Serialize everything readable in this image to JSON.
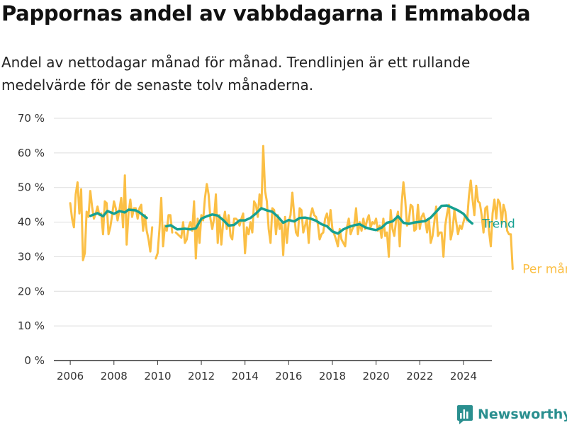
{
  "title": "Pappornas andel av vabbdagarna i Emmaboda",
  "subtitle": "Andel av nettodagar månad för månad. Trendlinjen är ett rullande medelvärde för de senaste tolv månaderna.",
  "brand": {
    "name": "Newsworthy",
    "icon": "newsworthy-logo-icon"
  },
  "colors": {
    "monthly": "#fbbf45",
    "trend": "#16a091",
    "grid": "#dddddd",
    "axis": "#333333"
  },
  "chart_data": {
    "type": "line",
    "ylim": [
      0,
      70
    ],
    "yticks": [
      0,
      10,
      20,
      30,
      40,
      50,
      60,
      70
    ],
    "ytick_labels": [
      "0 %",
      "10 %",
      "20 %",
      "30 %",
      "40 %",
      "50 %",
      "60 %",
      "70 %"
    ],
    "xlim": [
      2005.25,
      2025.3
    ],
    "xticks": [
      2006,
      2008,
      2010,
      2012,
      2014,
      2016,
      2018,
      2020,
      2022,
      2024
    ],
    "xtick_labels": [
      "2006",
      "2008",
      "2010",
      "2012",
      "2014",
      "2016",
      "2018",
      "2020",
      "2022",
      "2024"
    ],
    "grid": true,
    "series": [
      {
        "name": "Per månad",
        "color": "#fbbf45",
        "x_start": 2006.0,
        "step": 0.0833333,
        "values": [
          45.5,
          41,
          38.5,
          48,
          51.5,
          42.5,
          49.5,
          29,
          31,
          43,
          41.5,
          49,
          44.5,
          41,
          42.5,
          44.5,
          42,
          42.5,
          36.5,
          46,
          45.5,
          36.5,
          38.5,
          42,
          46,
          44,
          40.5,
          43.5,
          47,
          38.5,
          53.5,
          33.5,
          42.5,
          46.5,
          41.5,
          44,
          44,
          41,
          44,
          45,
          37.5,
          42,
          37.5,
          35,
          31.5,
          38.5,
          null,
          29.5,
          31,
          38,
          47,
          33,
          39,
          37.5,
          42,
          42,
          37,
          null,
          37,
          36.5,
          36,
          35.5,
          40,
          34,
          35,
          38.5,
          40,
          37.5,
          46,
          29.5,
          41,
          34,
          42,
          40.5,
          47,
          51,
          48,
          41,
          38,
          41,
          48,
          34,
          42,
          33.5,
          40,
          43,
          38,
          42,
          36,
          35,
          41,
          41,
          40.5,
          39,
          41,
          42.5,
          31,
          38.5,
          36.5,
          40,
          37,
          46,
          45,
          41.5,
          48,
          44,
          62,
          49,
          46,
          38,
          34,
          44,
          43.5,
          36.5,
          42,
          38,
          40,
          30.5,
          41.5,
          34,
          40,
          42,
          48.5,
          42,
          37,
          36,
          44,
          43.5,
          37,
          39,
          41,
          34,
          42,
          44,
          42,
          41.5,
          39.5,
          35,
          36.5,
          37,
          41,
          42.5,
          39,
          43.5,
          38,
          36.5,
          35,
          33,
          38,
          35,
          34,
          33,
          38.5,
          41,
          36.5,
          38,
          39,
          44,
          36.5,
          40,
          37.5,
          41,
          38,
          40.5,
          42,
          38.5,
          40,
          39.5,
          41,
          37.5,
          39,
          35.5,
          41,
          36,
          37,
          30,
          43.5,
          38,
          36,
          40.5,
          43,
          33,
          45,
          51.5,
          46.5,
          39,
          40.5,
          45,
          44.5,
          37.5,
          38,
          45,
          38,
          41.5,
          42.5,
          40.5,
          37,
          41,
          34,
          36,
          40,
          44.5,
          36,
          37,
          37,
          30,
          39,
          42.5,
          45,
          35,
          37.5,
          43.5,
          40,
          36.5,
          39,
          38,
          40,
          42,
          40.5,
          47.5,
          52,
          46.5,
          42,
          50.5,
          46,
          45.5,
          42,
          37,
          44,
          44.5,
          37.5,
          33,
          42.5,
          46.5,
          41,
          46.5,
          45.5,
          39.5,
          45,
          43,
          37.5,
          36.5,
          36.5,
          26.5
        ]
      },
      {
        "name": "Trend",
        "color": "#16a091",
        "x_start": 2006.92,
        "points": [
          [
            2006.92,
            41.8
          ],
          [
            2007.25,
            42.6
          ],
          [
            2007.5,
            41.7
          ],
          [
            2007.7,
            43.2
          ],
          [
            2008.0,
            42.4
          ],
          [
            2008.25,
            43.2
          ],
          [
            2008.5,
            42.8
          ],
          [
            2008.67,
            43.6
          ],
          [
            2009.0,
            43.4
          ],
          [
            2009.17,
            42.8
          ],
          [
            2009.5,
            41.2
          ],
          null,
          [
            2010.4,
            38.8
          ],
          [
            2010.6,
            39.1
          ],
          [
            2010.75,
            38.5
          ],
          [
            2010.9,
            37.9
          ],
          [
            2011.25,
            38.1
          ],
          [
            2011.5,
            37.9
          ],
          [
            2011.75,
            38.2
          ],
          [
            2012.0,
            41.0
          ],
          [
            2012.25,
            41.7
          ],
          [
            2012.5,
            42.2
          ],
          [
            2012.75,
            41.9
          ],
          [
            2013.0,
            40.6
          ],
          [
            2013.25,
            39.0
          ],
          [
            2013.5,
            39.2
          ],
          [
            2013.75,
            40.5
          ],
          [
            2014.0,
            40.5
          ],
          [
            2014.25,
            41.2
          ],
          [
            2014.5,
            42.5
          ],
          [
            2014.75,
            44.0
          ],
          [
            2015.0,
            43.4
          ],
          [
            2015.25,
            43.0
          ],
          [
            2015.5,
            41.6
          ],
          [
            2015.75,
            39.8
          ],
          [
            2016.0,
            40.6
          ],
          [
            2016.25,
            40.2
          ],
          [
            2016.5,
            41.2
          ],
          [
            2016.75,
            41.3
          ],
          [
            2017.0,
            41.0
          ],
          [
            2017.25,
            40.4
          ],
          [
            2017.5,
            39.4
          ],
          [
            2017.75,
            38.8
          ],
          [
            2018.0,
            37.3
          ],
          [
            2018.25,
            36.7
          ],
          [
            2018.5,
            37.9
          ],
          [
            2018.75,
            38.6
          ],
          [
            2019.0,
            39.1
          ],
          [
            2019.25,
            39.4
          ],
          [
            2019.5,
            38.5
          ],
          [
            2019.75,
            38.0
          ],
          [
            2020.0,
            37.7
          ],
          [
            2020.25,
            38.4
          ],
          [
            2020.5,
            39.8
          ],
          [
            2020.75,
            40.2
          ],
          [
            2021.0,
            41.7
          ],
          [
            2021.25,
            39.8
          ],
          [
            2021.5,
            39.5
          ],
          [
            2021.75,
            39.9
          ],
          [
            2022.0,
            40.1
          ],
          [
            2022.25,
            40.3
          ],
          [
            2022.5,
            41.3
          ],
          [
            2022.75,
            43.0
          ],
          [
            2023.0,
            44.7
          ],
          [
            2023.25,
            44.8
          ],
          [
            2023.5,
            44.1
          ],
          [
            2023.75,
            43.4
          ],
          [
            2024.0,
            42.4
          ],
          [
            2024.25,
            40.4
          ],
          [
            2024.4,
            39.6
          ]
        ]
      }
    ],
    "series_labels": [
      {
        "series": "Trend",
        "text": "Trend"
      },
      {
        "series": "Per månad",
        "text": "Per månad"
      }
    ]
  }
}
